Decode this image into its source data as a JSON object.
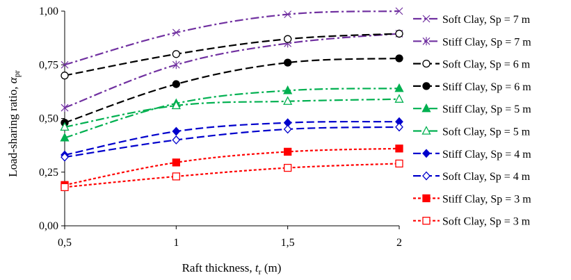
{
  "chart_data": {
    "type": "line",
    "x": [
      0.5,
      1,
      1.5,
      2
    ],
    "xlim": [
      0.5,
      2
    ],
    "ylim": [
      0,
      1
    ],
    "xticks": [
      "0,5",
      "1",
      "1,5",
      "2"
    ],
    "yticks": [
      "0,00",
      "0,25",
      "0,50",
      "0,75",
      "1,00"
    ],
    "xlabel": {
      "main": "Raft thickness, ",
      "symbol": "t",
      "sub": "r",
      "unit": " (m)"
    },
    "ylabel": {
      "main": "Load-sharing ratio, ",
      "symbol": "α",
      "sub": "pr"
    },
    "grid": false,
    "legend_position": "right",
    "series": [
      {
        "name": "Soft Clay, Sp = 7 m",
        "values": [
          0.75,
          0.9,
          0.985,
          1.0
        ],
        "color": "#7030A0",
        "dash": "dashdot",
        "marker": "x"
      },
      {
        "name": "Stiff Clay, Sp = 7 m",
        "values": [
          0.55,
          0.75,
          0.85,
          0.895
        ],
        "color": "#7030A0",
        "dash": "dashdot",
        "marker": "star"
      },
      {
        "name": "Soft Clay, Sp = 6 m",
        "values": [
          0.7,
          0.8,
          0.87,
          0.895
        ],
        "color": "#000000",
        "dash": "dash",
        "marker": "circle-open"
      },
      {
        "name": "Stiff Clay, Sp = 6 m",
        "values": [
          0.48,
          0.66,
          0.76,
          0.78
        ],
        "color": "#000000",
        "dash": "dash",
        "marker": "circle"
      },
      {
        "name": "Stiff Clay, Sp = 5 m",
        "values": [
          0.41,
          0.57,
          0.63,
          0.64
        ],
        "color": "#00B050",
        "dash": "dashdot",
        "marker": "triangle"
      },
      {
        "name": "Soft Clay, Sp = 5 m",
        "values": [
          0.46,
          0.56,
          0.58,
          0.59
        ],
        "color": "#00B050",
        "dash": "dashdot",
        "marker": "triangle-open"
      },
      {
        "name": "Stiff Clay, Sp = 4 m",
        "values": [
          0.33,
          0.44,
          0.48,
          0.485
        ],
        "color": "#0000CC",
        "dash": "dash",
        "marker": "diamond"
      },
      {
        "name": "Soft Clay, Sp = 4 m",
        "values": [
          0.32,
          0.4,
          0.45,
          0.46
        ],
        "color": "#0000CC",
        "dash": "dash",
        "marker": "diamond-open"
      },
      {
        "name": "Stiff Clay, Sp = 3 m",
        "values": [
          0.19,
          0.295,
          0.345,
          0.36
        ],
        "color": "#FF0000",
        "dash": "dot",
        "marker": "square"
      },
      {
        "name": "Soft Clay, Sp = 3 m",
        "values": [
          0.18,
          0.23,
          0.27,
          0.29
        ],
        "color": "#FF0000",
        "dash": "dot",
        "marker": "square-open"
      }
    ]
  }
}
